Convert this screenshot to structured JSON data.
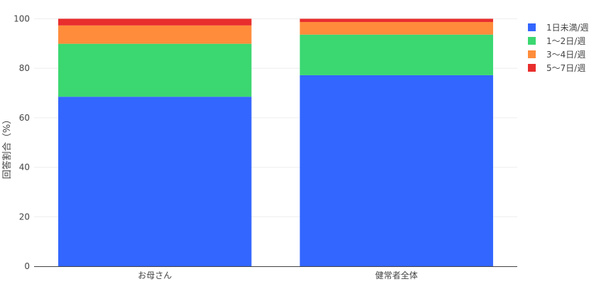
{
  "chart_data": {
    "type": "bar",
    "stacked": true,
    "categories": [
      "お母さん",
      "健常者全体"
    ],
    "series": [
      {
        "name": "1日未満/週",
        "color": "#3366ff",
        "values": [
          68.5,
          77.2
        ]
      },
      {
        "name": "1〜2日/週",
        "color": "#3bd771",
        "values": [
          21.4,
          16.4
        ]
      },
      {
        "name": "3〜4日/週",
        "color": "#ff8c3b",
        "values": [
          7.4,
          5.1
        ]
      },
      {
        "name": "5〜7日/週",
        "color": "#e82d2d",
        "values": [
          2.7,
          1.3
        ]
      }
    ],
    "ylabel": "回答割合（%）",
    "xlabel": "",
    "ylim": [
      0,
      105
    ],
    "yticks": [
      0,
      20,
      40,
      60,
      80,
      100
    ],
    "grid": true,
    "legend": "top-right"
  }
}
